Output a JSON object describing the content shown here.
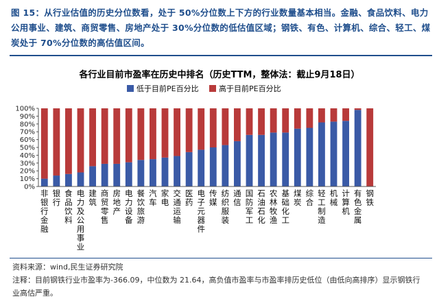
{
  "caption": "图 15：从行业估值的历史分位数看，处于 50%分位数上下方的行业数量基本相当。金融、食品饮料、电力公用事业、建筑、商贸零售、房地产处于 30%分位数的低估值区域；钢铁、有色、计算机、综合、轻工、煤炭处于 70%分位数的高估值区间。",
  "source": "资料来源：wind,民生证券研究院",
  "note": "注释：目前钢铁行业市盈率为-366.09，中位数为 21.64，高负值市盈率与市盈率排历史低位（由低向高排序）显示钢铁行业高估严重。",
  "colors": {
    "low": "#3a5aa6",
    "high": "#b83a3a",
    "accent": "#1f4e8c"
  },
  "chart_data": {
    "type": "bar",
    "stacked": true,
    "title": "各行业目前市盈率在历史中排名（历史TTM，整体法：截止9月18日）",
    "categories": [
      "非银行金融",
      "银行",
      "食品饮料",
      "电力及公用事业",
      "建筑",
      "商贸零售",
      "房地产",
      "电力设备",
      "餐饮旅游",
      "汽车",
      "家电",
      "交通运输",
      "医药",
      "电子元器件",
      "传媒",
      "纺织服装",
      "通信",
      "国防军工",
      "石油石化",
      "农林牧渔",
      "基础化工",
      "煤炭",
      "综合",
      "轻工制造",
      "机械",
      "计算机",
      "有色金属",
      "钢铁"
    ],
    "series": [
      {
        "name": "低于目前PE百分比",
        "values": [
          10,
          14,
          16,
          18,
          26,
          29,
          29,
          31,
          34,
          35,
          37,
          39,
          44,
          47,
          50,
          53,
          58,
          66,
          66,
          69,
          69,
          74,
          75,
          82,
          83,
          84,
          98,
          0
        ]
      },
      {
        "name": "高于目前PE百分比",
        "values": [
          90,
          86,
          84,
          82,
          74,
          71,
          71,
          69,
          66,
          65,
          63,
          61,
          56,
          53,
          50,
          47,
          42,
          34,
          34,
          31,
          31,
          26,
          25,
          18,
          17,
          16,
          2,
          100
        ]
      }
    ],
    "ylim": [
      0,
      100
    ],
    "yticks": [
      "0%",
      "10%",
      "20%",
      "30%",
      "40%",
      "50%",
      "60%",
      "70%",
      "80%",
      "90%",
      "100%"
    ],
    "legend_position": "top",
    "grid": false
  }
}
